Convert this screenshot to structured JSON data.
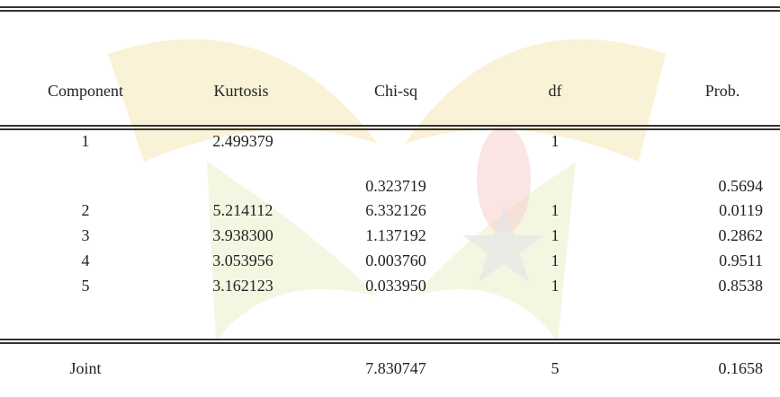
{
  "table": {
    "header": {
      "component": "Component",
      "kurtosis": "Kurtosis",
      "chi_sq": "Chi-sq",
      "df": "df",
      "prob": "Prob."
    },
    "rows": [
      {
        "component": "1",
        "kurtosis": "2.499379",
        "df": "1"
      },
      {
        "chi_sq": "0.323719",
        "prob": "0.5694"
      },
      {
        "component": "2",
        "kurtosis": "5.214112",
        "chi_sq": "6.332126",
        "df": "1",
        "prob": "0.0119"
      },
      {
        "component": "3",
        "kurtosis": "3.938300",
        "chi_sq": "1.137192",
        "df": "1",
        "prob": "0.2862"
      },
      {
        "component": "4",
        "kurtosis": "3.053956",
        "chi_sq": "0.003760",
        "df": "1",
        "prob": "0.9511"
      },
      {
        "component": "5",
        "kurtosis": "3.162123",
        "chi_sq": "0.033950",
        "df": "1",
        "prob": "0.8538"
      }
    ],
    "joint": {
      "component": "Joint",
      "chi_sq": "7.830747",
      "df": "5",
      "prob": "0.1658"
    }
  }
}
